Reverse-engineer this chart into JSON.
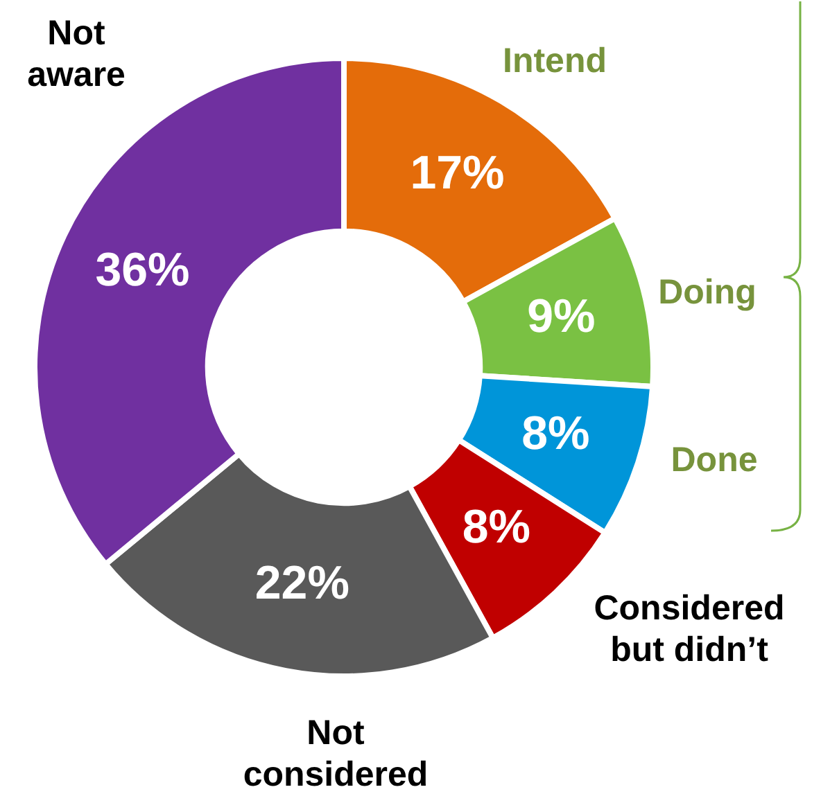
{
  "chart_data": {
    "type": "donut",
    "categories": [
      "Intend",
      "Doing",
      "Done",
      "Considered\nbut didn’t",
      "Not\nconsidered",
      "Not\naware"
    ],
    "values": [
      17,
      9,
      8,
      8,
      22,
      36
    ],
    "colors": [
      "#e46c0a",
      "#7ac143",
      "#0095d9",
      "#c00000",
      "#595959",
      "#7030a0"
    ],
    "value_labels": [
      "17%",
      "9%",
      "8%",
      "8%",
      "22%",
      "36%"
    ],
    "legend": false
  }
}
